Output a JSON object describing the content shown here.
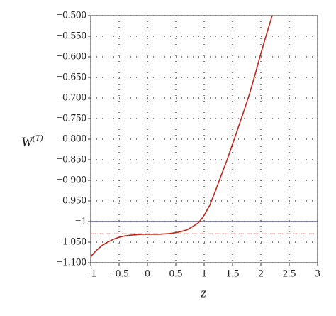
{
  "chart_data": {
    "type": "line",
    "xlabel": "z",
    "ylabel": "W",
    "ylabel_sup": "(T)",
    "x": [
      -1,
      -0.9,
      -0.8,
      -0.7,
      -0.6,
      -0.5,
      -0.4,
      -0.3,
      -0.2,
      -0.1,
      0,
      0.1,
      0.2,
      0.3,
      0.4,
      0.5,
      0.6,
      0.7,
      0.8,
      0.9,
      1.0,
      1.1,
      1.2,
      1.3,
      1.4,
      1.5,
      1.6,
      1.7,
      1.8,
      1.9,
      2.0,
      2.1,
      2.2
    ],
    "series": [
      {
        "color": "#c0281c",
        "values": [
          -1.085,
          -1.07,
          -1.058,
          -1.05,
          -1.043,
          -1.038,
          -1.035,
          -1.033,
          -1.032,
          -1.031,
          -1.031,
          -1.031,
          -1.031,
          -1.03,
          -1.029,
          -1.027,
          -1.024,
          -1.02,
          -1.012,
          -1.003,
          -0.985,
          -0.96,
          -0.925,
          -0.888,
          -0.852,
          -0.812,
          -0.772,
          -0.732,
          -0.69,
          -0.642,
          -0.592,
          -0.545,
          -0.5
        ]
      }
    ],
    "hlines": [
      {
        "value": -1,
        "color": "#3a3aa0",
        "style": "solid"
      },
      {
        "value": -1.03,
        "color": "#e0401c",
        "style": "dashed"
      }
    ],
    "xlim": [
      -1,
      3
    ],
    "ylim": [
      -1.1,
      -0.5
    ],
    "xticks": [
      {
        "value": -1,
        "label": "−1"
      },
      {
        "value": -0.5,
        "label": "−0.5"
      },
      0,
      0.5,
      1,
      1.5,
      2,
      2.5,
      3
    ],
    "yticks": [
      {
        "value": -0.5,
        "label": "−0.500"
      },
      {
        "value": -0.55,
        "label": "−0.550"
      },
      {
        "value": -0.6,
        "label": "−0.600"
      },
      {
        "value": -0.65,
        "label": "−0.650"
      },
      {
        "value": -0.7,
        "label": "−0.700"
      },
      {
        "value": -0.75,
        "label": "−0.750"
      },
      {
        "value": -0.8,
        "label": "−0.800"
      },
      {
        "value": -0.85,
        "label": "−0.850"
      },
      {
        "value": -0.9,
        "label": "−0.900"
      },
      {
        "value": -0.95,
        "label": "−0.950"
      },
      {
        "value": -1,
        "label": "−1"
      },
      {
        "value": -1.05,
        "label": "−1.050"
      },
      {
        "value": -1.1,
        "label": "−1.100"
      }
    ],
    "grid": true
  }
}
